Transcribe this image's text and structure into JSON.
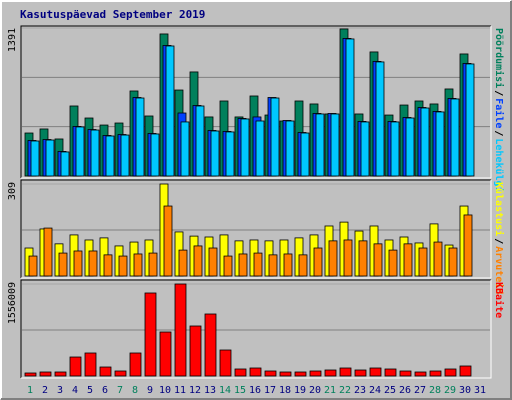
{
  "title": "Kasutuspäevad September 2019",
  "separator": "/",
  "chart_data": [
    {
      "type": "bar",
      "ylim": [
        0,
        1391
      ],
      "yticks": [
        1391
      ],
      "series": [
        {
          "name": "Pöördumisi",
          "color": "#00805c",
          "values": [
            404,
            442,
            348,
            658,
            545,
            479,
            498,
            799,
            564,
            1335,
            808,
            978,
            555,
            705,
            555,
            752,
            573,
            517,
            705,
            677,
            583,
            1382,
            583,
            1166,
            573,
            667,
            705,
            677,
            818,
            1147,
            null
          ]
        },
        {
          "name": "Faile",
          "color": "#0040ff",
          "values": [
            334,
            343,
            231,
            466,
            437,
            381,
            390,
            738,
            400,
            1227,
            592,
            663,
            428,
            419,
            541,
            555,
            738,
            522,
            409,
            588,
            588,
            1293,
            513,
            1077,
            513,
            550,
            644,
            607,
            729,
            1058,
            null
          ]
        },
        {
          "name": "Lehekülgi",
          "color": "#00c8ff",
          "values": [
            329,
            338,
            226,
            461,
            432,
            376,
            385,
            733,
            395,
            1222,
            508,
            658,
            423,
            414,
            536,
            517,
            733,
            517,
            404,
            583,
            583,
            1288,
            508,
            1072,
            508,
            545,
            639,
            602,
            724,
            1053,
            null
          ]
        }
      ]
    },
    {
      "type": "bar",
      "ylim": [
        0,
        309
      ],
      "yticks": [
        309
      ],
      "series": [
        {
          "name": "Külastusi",
          "color": "#ffff00",
          "values": [
            94,
            158,
            108,
            138,
            121,
            128,
            101,
            114,
            121,
            309,
            148,
            134,
            131,
            138,
            118,
            121,
            118,
            121,
            128,
            138,
            168,
            181,
            151,
            168,
            121,
            131,
            111,
            175,
            104,
            235,
            null
          ]
        },
        {
          "name": "Arvuteid",
          "color": "#ff8000",
          "values": [
            67,
            161,
            77,
            84,
            84,
            71,
            67,
            74,
            77,
            235,
            87,
            101,
            94,
            67,
            74,
            77,
            71,
            74,
            71,
            94,
            118,
            121,
            118,
            108,
            87,
            108,
            94,
            114,
            94,
            205,
            null
          ]
        }
      ]
    },
    {
      "type": "bar",
      "ylim": [
        0,
        1556009
      ],
      "yticks": [
        1556009
      ],
      "categories": [
        "1",
        "2",
        "3",
        "4",
        "5",
        "6",
        "7",
        "8",
        "9",
        "10",
        "11",
        "12",
        "13",
        "14",
        "15",
        "16",
        "17",
        "18",
        "19",
        "20",
        "21",
        "22",
        "23",
        "24",
        "25",
        "26",
        "27",
        "28",
        "29",
        "30",
        "31"
      ],
      "category_colors": [
        "#00805c",
        "#000080",
        "#000080",
        "#000080",
        "#000080",
        "#000080",
        "#00805c",
        "#00805c",
        "#000080",
        "#000080",
        "#000080",
        "#000080",
        "#000080",
        "#00805c",
        "#00805c",
        "#000080",
        "#000080",
        "#000080",
        "#000080",
        "#000080",
        "#00805c",
        "#00805c",
        "#000080",
        "#000080",
        "#000080",
        "#000080",
        "#000080",
        "#00805c",
        "#00805c",
        "#000080",
        "#000080"
      ],
      "series": [
        {
          "name": "KBaite",
          "color": "#ff0000",
          "values": [
            50739,
            67652,
            67652,
            321000,
            389000,
            152000,
            84565,
            389000,
            1403800,
            744000,
            1556009,
            845650,
            1048600,
            439700,
            118400,
            135300,
            84565,
            67652,
            67652,
            84565,
            101478,
            135300,
            101478,
            135300,
            118391,
            84565,
            67652,
            84565,
            118391,
            169130,
            null
          ]
        }
      ]
    }
  ]
}
